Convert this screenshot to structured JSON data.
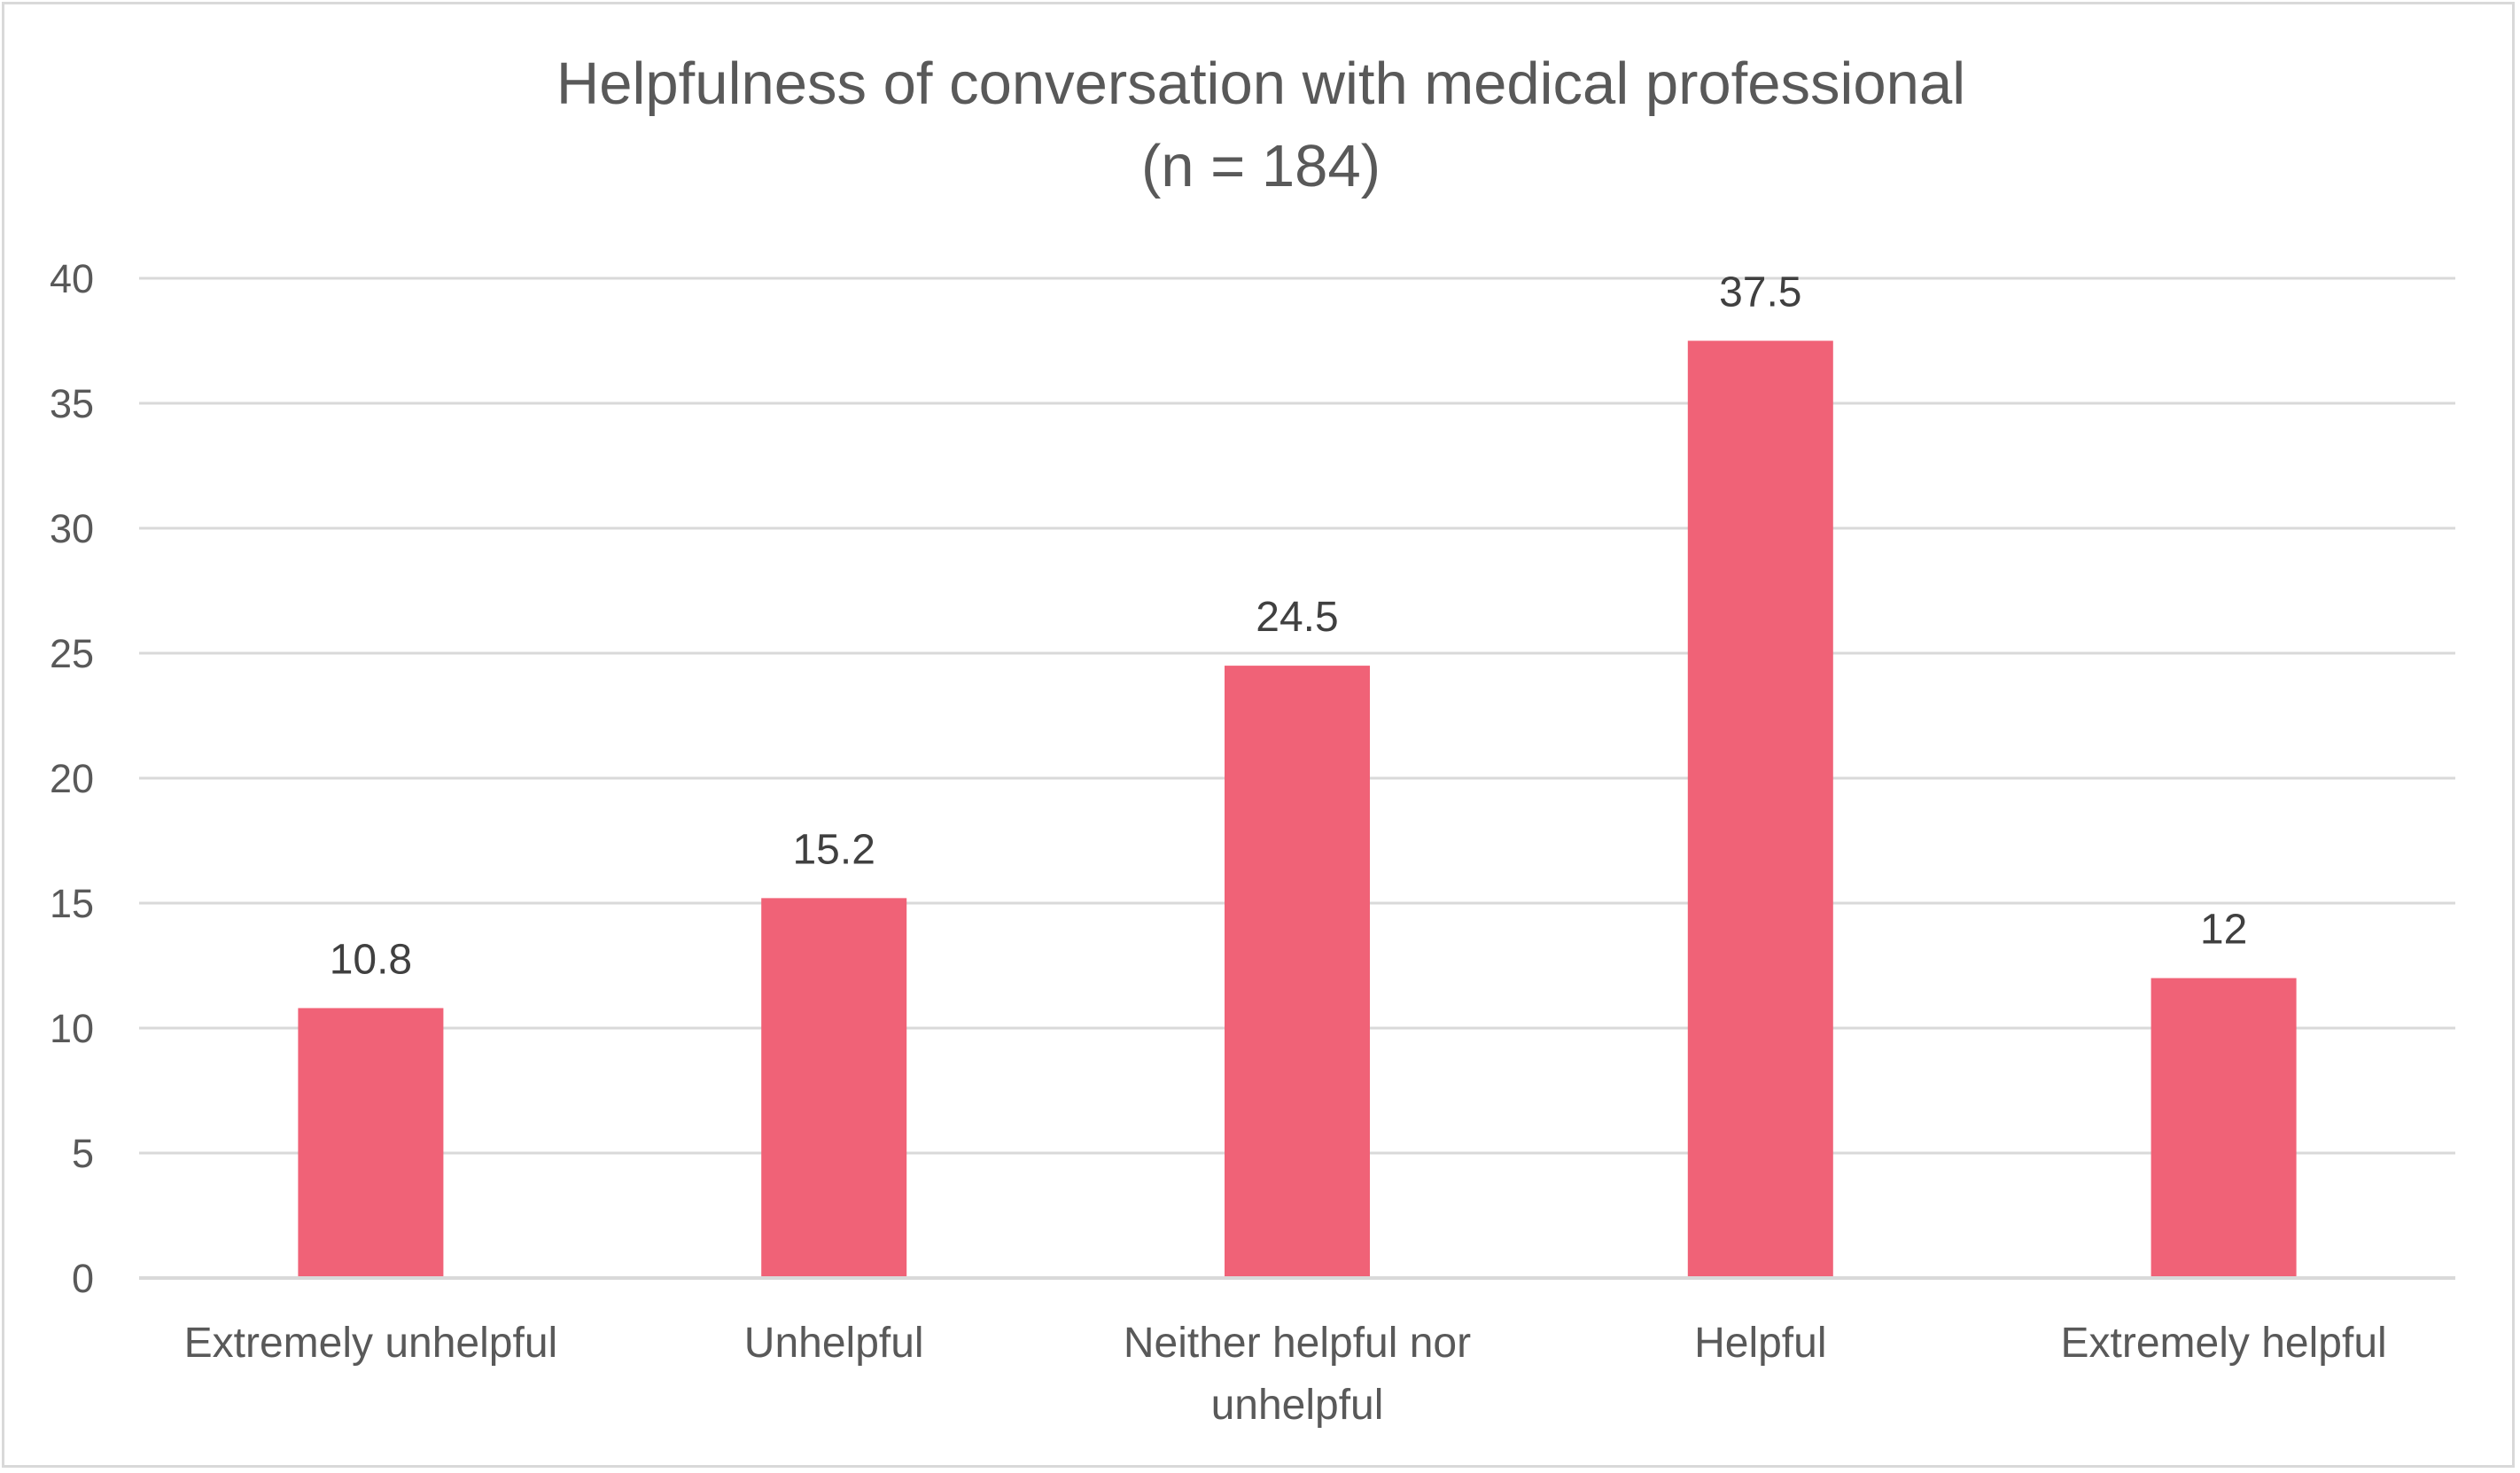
{
  "chart_data": {
    "type": "bar",
    "title": "Helpfulness of conversation with medical professional",
    "subtitle": "(n = 184)",
    "xlabel": "",
    "ylabel": "",
    "categories": [
      "Extremely unhelpful",
      "Unhelpful",
      "Neither helpful nor unhelpful",
      "Helpful",
      "Extremely helpful"
    ],
    "category_lines": [
      [
        "Extremely unhelpful"
      ],
      [
        "Unhelpful"
      ],
      [
        "Neither helpful nor",
        "unhelpful"
      ],
      [
        "Helpful"
      ],
      [
        "Extremely helpful"
      ]
    ],
    "values": [
      10.8,
      15.2,
      24.5,
      37.5,
      12
    ],
    "data_labels": [
      "10.8",
      "15.2",
      "24.5",
      "37.5",
      "12"
    ],
    "ylim": [
      0,
      40
    ],
    "yticks": [
      0,
      5,
      10,
      15,
      20,
      25,
      30,
      35,
      40
    ],
    "grid": true,
    "legend": "none",
    "colors": {
      "bar": "#f06277",
      "grid": "#d9d9d9",
      "axis": "#d9d9d9",
      "text": "#595959",
      "data_label": "#404040",
      "frame": "#d9d9d9"
    }
  }
}
